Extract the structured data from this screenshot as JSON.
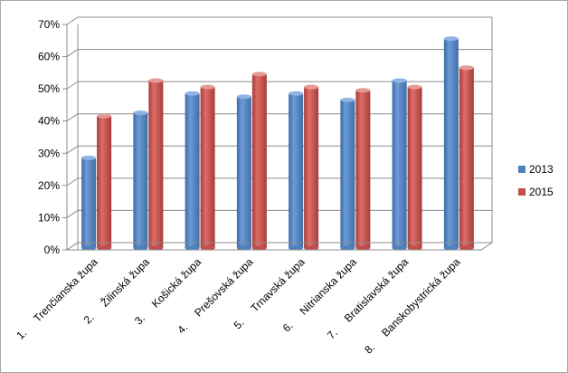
{
  "chart_data": {
    "type": "bar",
    "categories": [
      "1.     Trenčianska župa",
      "2.     Žilinská župa",
      "3.     Košická župa",
      "4.     Prešovská župa",
      "5.     Trnavská župa",
      "6.     Nitrianska župa",
      "7.     Bratislavská župa",
      "8.     Banskobystrická župa"
    ],
    "series": [
      {
        "name": "2013",
        "color": "#4f81bd",
        "values": [
          28,
          42,
          48,
          47,
          48,
          46,
          52,
          65
        ]
      },
      {
        "name": "2015",
        "color": "#c0504d",
        "values": [
          41,
          52,
          50,
          54,
          50,
          49,
          50,
          56
        ]
      }
    ],
    "yticks": [
      "0%",
      "10%",
      "20%",
      "30%",
      "40%",
      "50%",
      "60%",
      "70%"
    ],
    "ylim": [
      0,
      70
    ],
    "grid": true,
    "legend": "right"
  }
}
